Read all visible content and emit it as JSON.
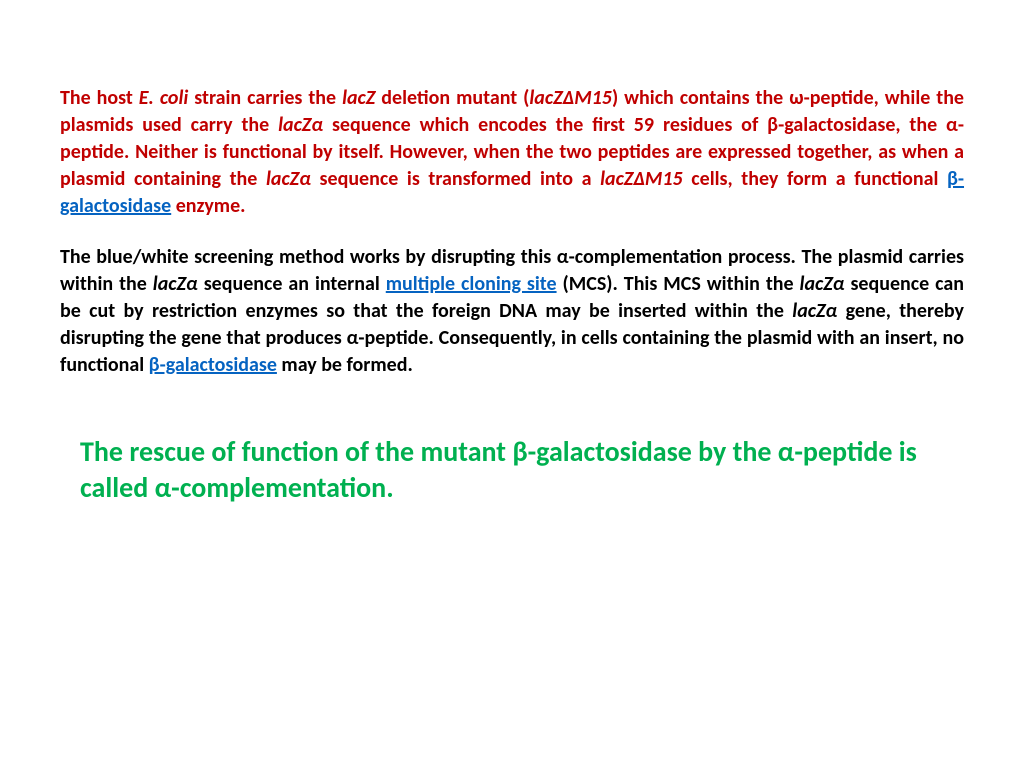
{
  "paragraph1": {
    "color": "#c00000",
    "fontsize": 20,
    "fontweight": "bold",
    "align": "justify",
    "segments": {
      "s1": "The host ",
      "s2": "E. coli",
      "s3": " strain carries the ",
      "s4": "lacZ",
      "s5": " deletion mutant (",
      "s6": "lacZΔM15",
      "s7": ") which contains the ω-peptide, while the plasmids used carry the ",
      "s8": "lacZα",
      "s9": " sequence which encodes the first 59 residues of β-galactosidase, the α-peptide. Neither is functional by itself. However, when the two peptides are expressed together, as when a plasmid containing the ",
      "s10": "lacZα",
      "s11": " sequence is transformed into a ",
      "s12": "lacZΔM15",
      "s13": " cells, they form a functional ",
      "link1": "β-galactosidase",
      "s14": " enzyme."
    }
  },
  "paragraph2": {
    "color": "#000000",
    "fontsize": 20,
    "fontweight": "bold",
    "align": "justify",
    "segments": {
      "s1": "The blue/white screening method works by disrupting this α-complementation process. The plasmid carries within the ",
      "s2": "lacZα",
      "s3": " sequence an internal ",
      "link1": "multiple cloning site",
      "s4": " (MCS). This MCS within the ",
      "s5": "lacZα",
      "s6": " sequence can be cut by restriction enzymes so that the foreign DNA may be inserted within the ",
      "s7": "lacZα",
      "s8": " gene, thereby disrupting the gene that produces α-peptide. Consequently, in cells containing the plasmid with an insert, no functional ",
      "link2": "β-galactosidase",
      "s9": " may be formed."
    }
  },
  "paragraph3": {
    "color": "#00b050",
    "fontsize": 28,
    "fontweight": "bold",
    "text": "The rescue of function of the mutant β-galactosidase by the α-peptide is called α-complementation."
  },
  "link_color": "#0563c1",
  "background_color": "#ffffff"
}
